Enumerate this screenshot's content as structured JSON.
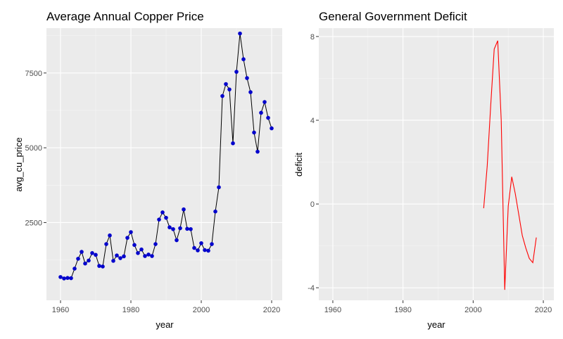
{
  "colors": {
    "panel_bg": "#ebebeb",
    "grid_major": "#ffffff",
    "grid_minor": "#f5f5f5",
    "tick_text": "#4d4d4d",
    "copper_point": "#0000cc",
    "copper_line": "#000000",
    "deficit_line": "#ff0000"
  },
  "chart_data": [
    {
      "type": "line",
      "title": "Average Annual Copper Price",
      "xlabel": "year",
      "ylabel": "avg_cu_price",
      "xlim": [
        1956,
        2023
      ],
      "ylim": [
        -100,
        9000
      ],
      "x_ticks": [
        1960,
        1980,
        2000,
        2020
      ],
      "y_ticks": [
        2500,
        5000,
        7500
      ],
      "y_tick_labels": [
        "2500",
        "5000",
        "7500"
      ],
      "grid": true,
      "markers": true,
      "series": [
        {
          "x": [
            1960,
            1961,
            1962,
            1963,
            1964,
            1965,
            1966,
            1967,
            1968,
            1969,
            1970,
            1971,
            1972,
            1973,
            1974,
            1975,
            1976,
            1977,
            1978,
            1979,
            1980,
            1981,
            1982,
            1983,
            1984,
            1985,
            1986,
            1987,
            1988,
            1989,
            1990,
            1991,
            1992,
            1993,
            1994,
            1995,
            1996,
            1997,
            1998,
            1999,
            2000,
            2001,
            2002,
            2003,
            2004,
            2005,
            2006,
            2007,
            2008,
            2009,
            2010,
            2011,
            2012,
            2013,
            2014,
            2015,
            2016,
            2017,
            2018,
            2019,
            2020
          ],
          "values": [
            679,
            631,
            648,
            640,
            960,
            1290,
            1520,
            1130,
            1230,
            1480,
            1420,
            1050,
            1030,
            1780,
            2070,
            1220,
            1400,
            1310,
            1370,
            1990,
            2180,
            1750,
            1480,
            1600,
            1380,
            1430,
            1380,
            1780,
            2600,
            2840,
            2660,
            2340,
            2280,
            1910,
            2310,
            2940,
            2290,
            2280,
            1650,
            1570,
            1810,
            1580,
            1560,
            1780,
            2870,
            3680,
            6730,
            7130,
            6950,
            5150,
            7540,
            8820,
            7960,
            7330,
            6860,
            5510,
            4870,
            6170,
            6530,
            6000,
            5650
          ]
        }
      ]
    },
    {
      "type": "line",
      "title": "General Government Deficit",
      "xlabel": "year",
      "ylabel": "deficit",
      "xlim": [
        1956,
        2023
      ],
      "ylim": [
        -4.6,
        8.4
      ],
      "x_ticks": [
        1960,
        1980,
        2000,
        2020
      ],
      "y_ticks": [
        -4,
        0,
        4,
        8
      ],
      "y_tick_labels": [
        "-4",
        "0",
        "4",
        "8"
      ],
      "grid": true,
      "markers": false,
      "series": [
        {
          "x": [
            2003,
            2004,
            2005,
            2006,
            2007,
            2008,
            2009,
            2010,
            2011,
            2012,
            2013,
            2014,
            2015,
            2016,
            2017,
            2018
          ],
          "values": [
            -0.2,
            1.8,
            4.7,
            7.4,
            7.8,
            4.0,
            -4.1,
            -0.1,
            1.3,
            0.5,
            -0.5,
            -1.5,
            -2.1,
            -2.6,
            -2.8,
            -1.6
          ]
        }
      ]
    }
  ]
}
